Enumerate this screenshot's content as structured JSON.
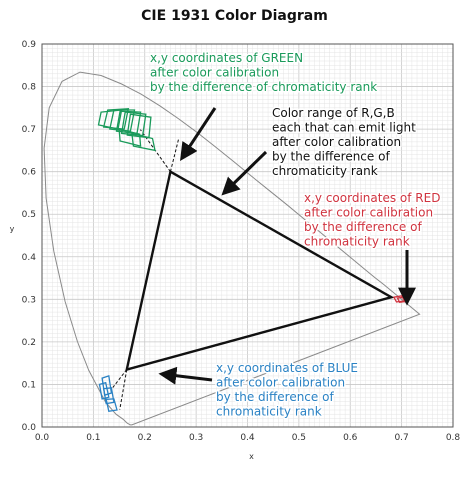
{
  "title": "CIE 1931 Color Diagram",
  "axes": {
    "xlabel": "x",
    "ylabel": "y",
    "xlim": [
      0.0,
      0.8
    ],
    "ylim": [
      0.0,
      0.9
    ],
    "xticks": [
      "0.0",
      "0.1",
      "0.2",
      "0.3",
      "0.4",
      "0.5",
      "0.6",
      "0.7",
      "0.8"
    ],
    "yticks": [
      "0.0",
      "0.1",
      "0.2",
      "0.3",
      "0.4",
      "0.5",
      "0.6",
      "0.7",
      "0.8",
      "0.9"
    ],
    "grid": true
  },
  "colors": {
    "green": "#1a9a5a",
    "red": "#d0333f",
    "blue": "#2a82c4",
    "black": "#111111",
    "grid_minor": "#e4e4e4",
    "grid_major": "#c8c8c8",
    "locus": "#8a8a8a"
  },
  "triangle": {
    "green": [
      0.25,
      0.6
    ],
    "red": [
      0.68,
      0.305
    ],
    "blue": [
      0.165,
      0.135
    ]
  },
  "annotations": {
    "green": [
      "x,y coordinates of GREEN",
      "after color calibration",
      "by the difference of chromaticity rank"
    ],
    "range": [
      "Color range of R,G,B",
      "each that can emit light",
      "after color calibration",
      "by the difference of",
      "chromaticity rank"
    ],
    "red": [
      "x,y coordinates of RED",
      "after color calibration",
      "by the difference of",
      "chromaticity rank"
    ],
    "blue": [
      "x,y coordinates of BLUE",
      "after color calibration",
      "by the difference of",
      "chromaticity rank"
    ]
  }
}
